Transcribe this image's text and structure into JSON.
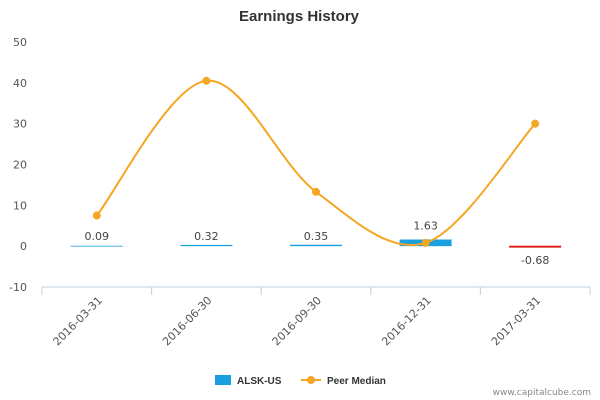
{
  "chart_data": {
    "type": "bar",
    "title": "Earnings History",
    "categories": [
      "2016-03-31",
      "2016-06-30",
      "2016-09-30",
      "2016-12-31",
      "2017-03-31"
    ],
    "ylim": [
      -10,
      50
    ],
    "yticks": [
      "50",
      "40",
      "30",
      "20",
      "10",
      "0",
      "-10"
    ],
    "grid": false,
    "legend_position": "bottom",
    "series": [
      {
        "name": "ALSK-US",
        "type": "bar",
        "values": [
          0.09,
          0.32,
          0.35,
          1.63,
          -0.68
        ],
        "labels": [
          "0.09",
          "0.32",
          "0.35",
          "1.63",
          "-0.68"
        ],
        "color_positive": "#1a9fe0",
        "color_negative": "#e0201a"
      },
      {
        "name": "Peer Median",
        "type": "line",
        "values": [
          7.5,
          40.5,
          13.3,
          0.8,
          30.0
        ],
        "color": "#f5a623"
      }
    ],
    "credit": "www.capitalcube.com"
  }
}
